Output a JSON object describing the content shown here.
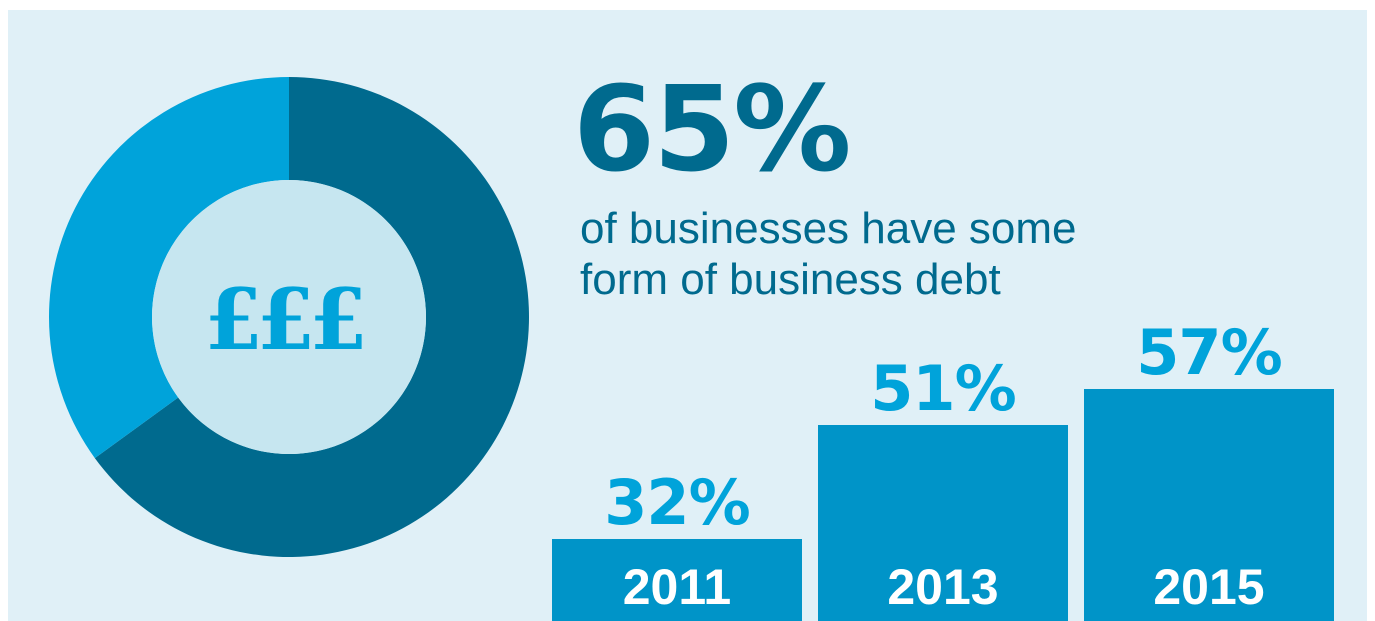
{
  "headline": {
    "value": "65%",
    "line1": "of businesses have some",
    "line2": "form of business debt"
  },
  "donut": {
    "center_label": "£££",
    "center_icon": "pound-sign-icon"
  },
  "colors": {
    "background": "#e0f0f7",
    "dark_blue": "#006a8e",
    "light_blue": "#00a3da",
    "bar_blue": "#0094c8",
    "center_fill": "#c6e6f0",
    "white": "#ffffff"
  },
  "chart_data": [
    {
      "type": "pie",
      "slices": [
        {
          "value": 65,
          "color": "#006a8e"
        },
        {
          "value": 35,
          "color": "#00a3da"
        }
      ]
    },
    {
      "type": "bar",
      "categories": [
        "2011",
        "2013",
        "2015"
      ],
      "values": [
        32,
        51,
        57
      ],
      "value_labels": [
        "32%",
        "51%",
        "57%"
      ]
    }
  ]
}
